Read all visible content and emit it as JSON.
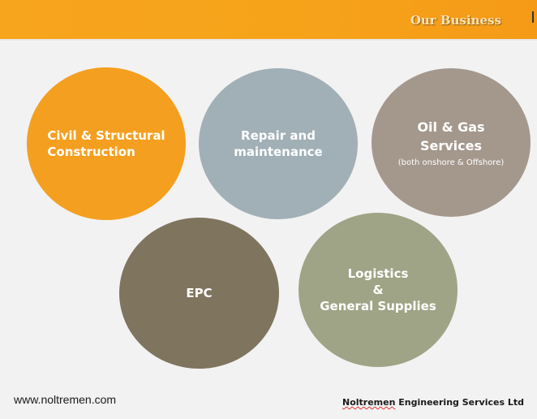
{
  "header": {
    "title": "Our Business"
  },
  "bubbles": {
    "civil": {
      "line1": "Civil & Structural",
      "line2": "Construction"
    },
    "repair": {
      "line1": "Repair and",
      "line2": "maintenance"
    },
    "oil": {
      "line1": "Oil & Gas",
      "line2": "Services",
      "sub": "(both onshore & Offshore)"
    },
    "epc": {
      "label": "EPC"
    },
    "logistics": {
      "line1": "Logistics",
      "line2": "&",
      "line3": "General Supplies"
    }
  },
  "footer": {
    "url": "www.noltremen.com",
    "company_word1": "Noltremen",
    "company_rest": " Engineering Services Ltd"
  },
  "colors": {
    "header": "#f7a51c",
    "civil": "#f49f1f",
    "repair": "#a1b0b6",
    "oil": "#a4988d",
    "epc": "#7f745e",
    "logistics": "#9ea485"
  }
}
